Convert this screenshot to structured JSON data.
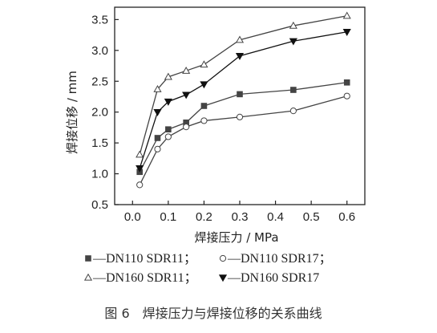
{
  "chart_data": {
    "type": "line",
    "title": "",
    "xlabel": "焊接压力 / MPa",
    "ylabel": "焊接位移 / mm",
    "xlim": [
      -0.05,
      0.65
    ],
    "ylim": [
      0.5,
      3.7
    ],
    "x_ticks": [
      "0.0",
      "0.1",
      "0.2",
      "0.3",
      "0.4",
      "0.5",
      "0.6"
    ],
    "y_ticks": [
      "0.5",
      "1.0",
      "1.5",
      "2.0",
      "2.5",
      "3.0",
      "3.5"
    ],
    "grid": false,
    "legend": {
      "placement": "bottom",
      "rows": [
        [
          {
            "series": 0,
            "label": "—DN110 SDR11；"
          },
          {
            "series": 1,
            "label": "—DN110 SDR17；"
          }
        ],
        [
          {
            "series": 2,
            "label": "—DN160 SDR11；"
          },
          {
            "series": 3,
            "label": "—DN160 SDR17"
          }
        ]
      ]
    },
    "x": [
      0.02,
      0.07,
      0.1,
      0.15,
      0.2,
      0.3,
      0.45,
      0.6
    ],
    "series": [
      {
        "name": "DN110 SDR11",
        "marker": "filled-square",
        "color": "#444444",
        "values": [
          1.03,
          1.58,
          1.72,
          1.83,
          2.1,
          2.29,
          2.36,
          2.48
        ]
      },
      {
        "name": "DN110 SDR17",
        "marker": "open-circle",
        "color": "#444444",
        "values": [
          0.82,
          1.4,
          1.6,
          1.76,
          1.86,
          1.92,
          2.02,
          2.26
        ]
      },
      {
        "name": "DN160 SDR11",
        "marker": "open-triangle-up",
        "color": "#444444",
        "values": [
          1.31,
          2.37,
          2.57,
          2.67,
          2.77,
          3.17,
          3.4,
          3.56
        ]
      },
      {
        "name": "DN160 SDR17",
        "marker": "filled-triangle-down",
        "color": "#111111",
        "values": [
          1.09,
          2.0,
          2.17,
          2.28,
          2.45,
          2.91,
          3.15,
          3.3
        ]
      }
    ]
  },
  "caption": "图 6　焊接压力与焊接位移的关系曲线"
}
